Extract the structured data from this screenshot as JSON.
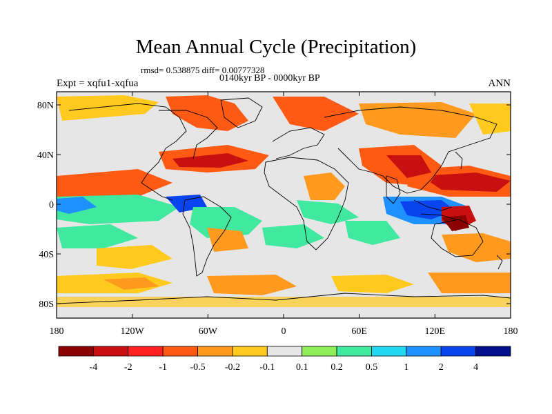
{
  "title": "Mean Annual Cycle (Precipitation)",
  "stats_line": "rmsd= 0.538875  diff= 0.00777328",
  "period_line": "0140kyr BP - 0000kyr BP",
  "left_label": "Expt = xqfu1-xqfua",
  "right_label": "ANN",
  "lat_ticks": [
    "80N",
    "40N",
    "0",
    "40S",
    "80S"
  ],
  "lon_ticks": [
    "180",
    "120W",
    "60W",
    "0",
    "60E",
    "120E",
    "180"
  ],
  "colorbar": {
    "labels": [
      "-4",
      "-2",
      "-1",
      "-0.5",
      "-0.2",
      "-0.1",
      "0.1",
      "0.2",
      "0.5",
      "1",
      "2",
      "4"
    ],
    "colors": [
      "#8b0000",
      "#c81010",
      "#ff2020",
      "#ff5a14",
      "#ff9a1e",
      "#ffc91e",
      "#e6e6e6",
      "#90ee58",
      "#40e8a0",
      "#20d8f0",
      "#1e90ff",
      "#0a44ee",
      "#00108c"
    ]
  },
  "map_colors": {
    "ocean_background": "#e6e6e6",
    "drying": "#ff5a14",
    "strong_drying": "#c81010",
    "mild_drying": "#ffc91e",
    "wetting": "#40e8a0",
    "strong_wetting": "#0a44ee"
  }
}
